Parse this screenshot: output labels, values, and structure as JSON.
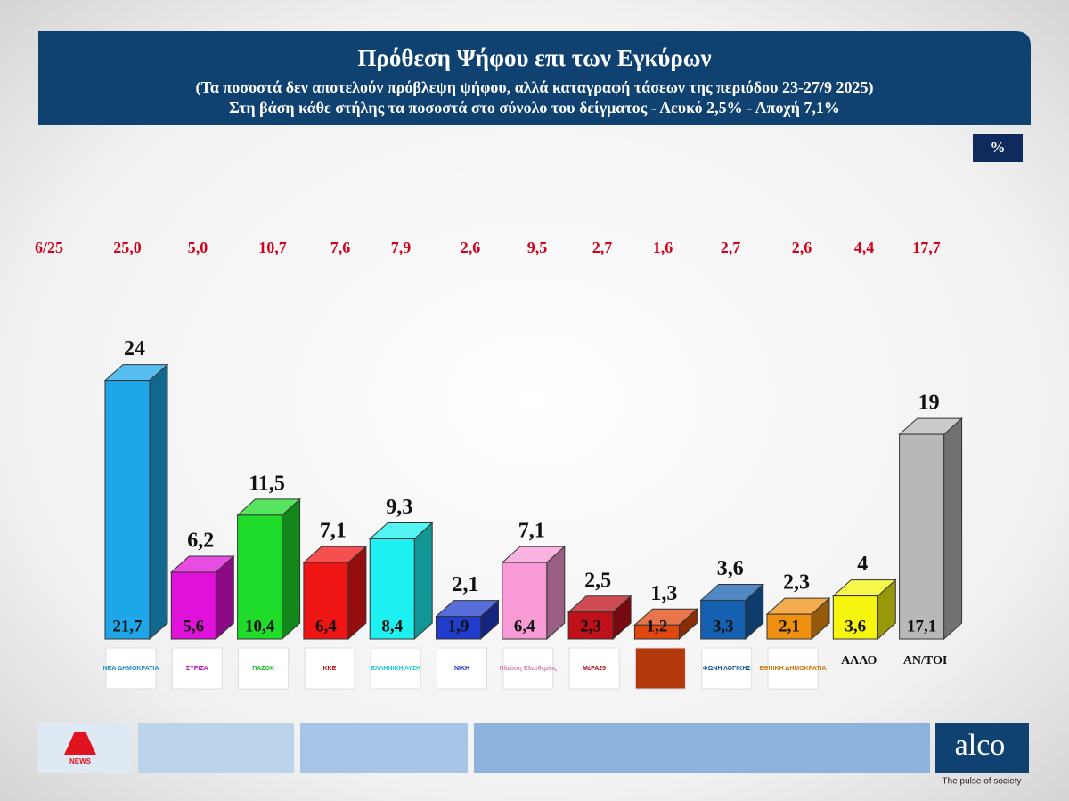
{
  "chart_data": {
    "type": "bar3d",
    "title": "Πρόθεση Ψήφου επι των Εγκύρων",
    "subtitle": "(Τα ποσοστά δεν αποτελούν πρόβλεψη ψήφου, αλλά καταγραφή τάσεων της περιόδου  23-27/9 2025)",
    "note": "Στη βάση κάθε στήλης τα ποσοστά στο σύνολο του δείγματος - Λευκό 2,5% - Αποχή 7,1%",
    "unit": "%",
    "categories": [
      "ΝΕΑ ΔΗΜΟΚΡΑΤΙΑ",
      "ΣΥΡΙΖΑ",
      "ΠΑΣΟΚ",
      "ΚΚΕ",
      "ΕΛΛΗΝΙΚΗ ΛΥΣΗ",
      "ΝΙΚΗ",
      "Πλεύση Ελευθερίας",
      "ΜέΡΑ25",
      null,
      "ΦΩΝΗ ΛΟΓΙΚΗΣ",
      "ΕΘΝΙΚΗ ΔΗΜΟΚΡΑΤΙΑ",
      "ΑΛΛΟ",
      "ΑΝ/ΤΟΙ"
    ],
    "colors": [
      "#1ea7e8",
      "#e011d8",
      "#1fdc2a",
      "#f01515",
      "#1cf0f0",
      "#1f3ccc",
      "#f79ad6",
      "#c0101a",
      "#e0470f",
      "#1560b0",
      "#f09010",
      "#f5f510",
      "#b8b8b8"
    ],
    "series": [
      {
        "values": [
          24,
          6.2,
          11.5,
          7.1,
          9.3,
          2.1,
          7.1,
          2.5,
          1.3,
          3.6,
          2.3,
          4,
          19
        ],
        "value_labels": [
          "24",
          "6,2",
          "11,5",
          "7,1",
          "9,3",
          "2,1",
          "7,1",
          "2,5",
          "1,3",
          "3,6",
          "2,3",
          "4",
          "19"
        ]
      },
      {
        "values": [
          21.7,
          5.6,
          10.4,
          6.4,
          8.4,
          1.9,
          6.4,
          2.3,
          1.2,
          3.3,
          2.1,
          3.6,
          17.1
        ],
        "value_labels": [
          "21,7",
          "5,6",
          "10,4",
          "6,4",
          "8,4",
          "1,9",
          "6,4",
          "2,3",
          "1,2",
          "3,3",
          "2,1",
          "3,6",
          "17,1"
        ]
      },
      {
        "name": "6/25",
        "values": [
          25.0,
          5.0,
          10.7,
          7.6,
          7.9,
          2.6,
          9.5,
          2.7,
          1.6,
          2.7,
          2.6,
          4.4,
          17.7
        ],
        "value_labels": [
          "25,0",
          "5,0",
          "10,7",
          "7,6",
          "7,9",
          "2,6",
          "9,5",
          "2,7",
          "1,6",
          "2,7",
          "2,6",
          "4,4",
          "17,7"
        ]
      }
    ]
  },
  "footer": {
    "broadcaster": "NEWS",
    "brand": "alco",
    "tagline": "The pulse of society"
  }
}
